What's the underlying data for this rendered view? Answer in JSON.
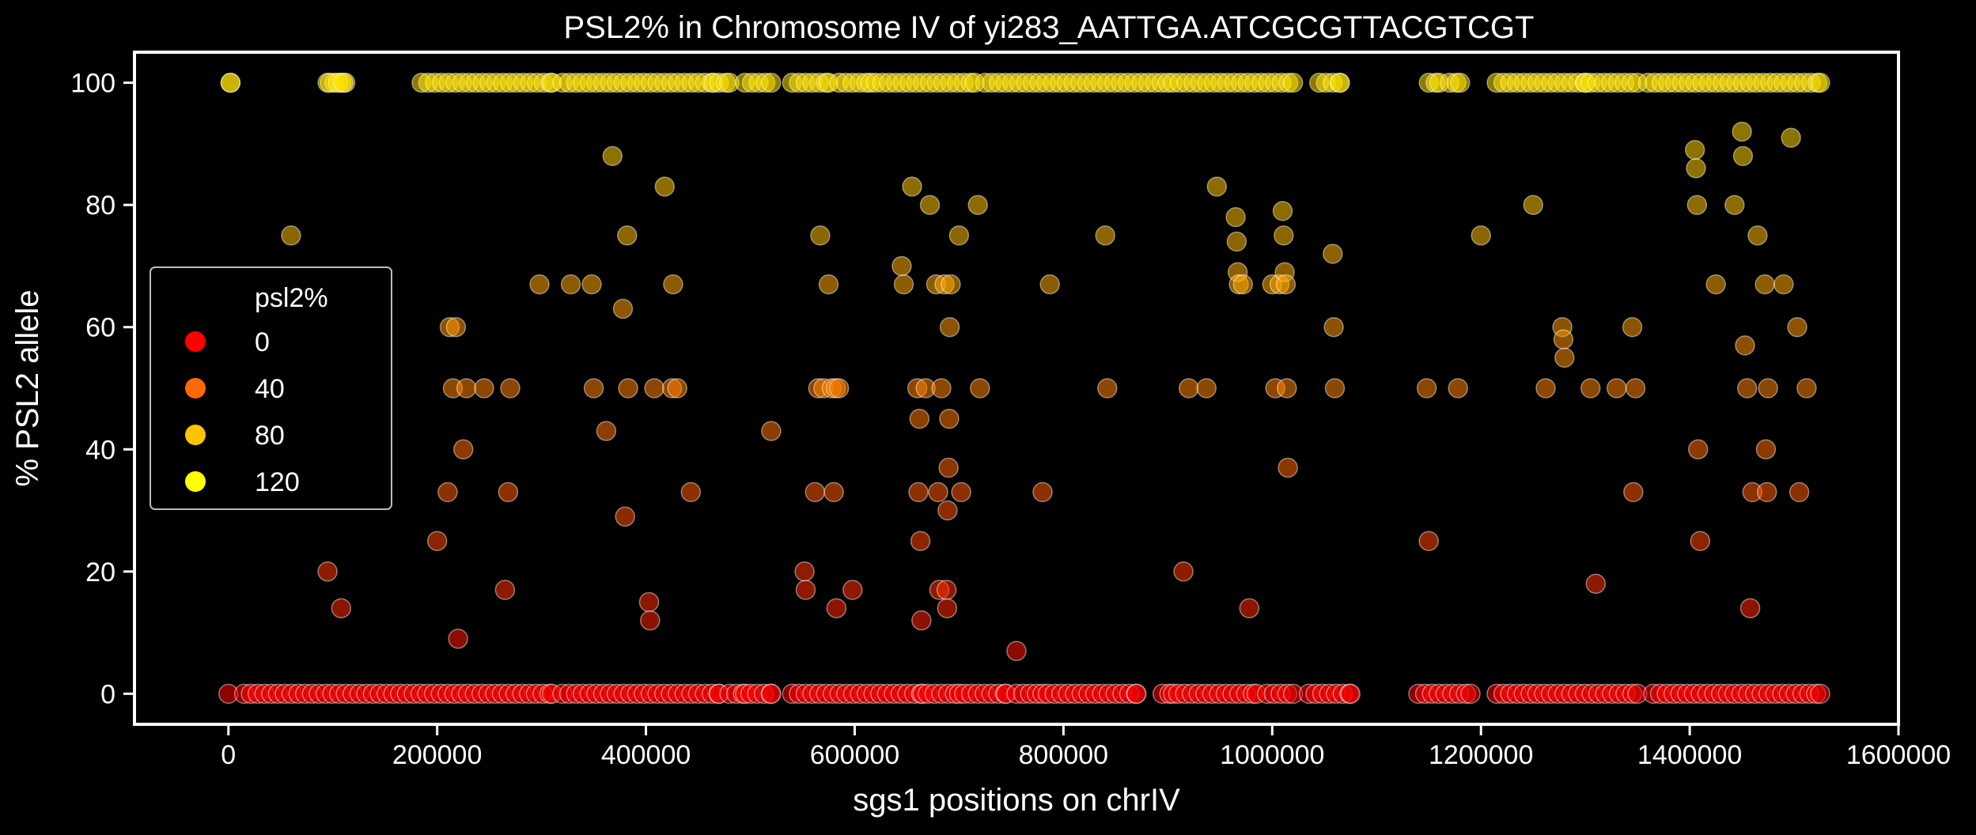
{
  "chart_data": {
    "type": "scatter",
    "title": "PSL2% in Chromosome IV of yi283_AATTGA.ATCGCGTTACGTCGT",
    "xlabel": "sgs1 positions on chrIV",
    "ylabel": "% PSL2 allele",
    "xlim": [
      -90000,
      1600000
    ],
    "ylim": [
      -5,
      105
    ],
    "xticks": [
      0,
      200000,
      400000,
      600000,
      800000,
      1000000,
      1200000,
      1400000,
      1600000
    ],
    "xtick_labels": [
      "0",
      "200000",
      "400000",
      "600000",
      "800000",
      "1000000",
      "1200000",
      "1400000",
      "1600000"
    ],
    "yticks": [
      0,
      20,
      40,
      60,
      80,
      100
    ],
    "ytick_labels": [
      "0",
      "20",
      "40",
      "60",
      "80",
      "100"
    ],
    "grid": false,
    "background": "#000000",
    "hue": "psl2%",
    "legend": {
      "title": "psl2%",
      "placement": "center-left",
      "entries": [
        {
          "label": "0",
          "color": "#ff0000"
        },
        {
          "label": "40",
          "color": "#ff6a00"
        },
        {
          "label": "80",
          "color": "#ffc400"
        },
        {
          "label": "120",
          "color": "#ffff00"
        }
      ]
    },
    "points": [
      [
        2000,
        100
      ],
      [
        60000,
        75
      ],
      [
        95000,
        20
      ],
      [
        97000,
        100
      ],
      [
        105000,
        100
      ],
      [
        108000,
        14
      ],
      [
        110000,
        100
      ],
      [
        200000,
        25
      ],
      [
        210000,
        33
      ],
      [
        212000,
        60
      ],
      [
        215000,
        50
      ],
      [
        218000,
        60
      ],
      [
        220000,
        9
      ],
      [
        225000,
        40
      ],
      [
        228000,
        50
      ],
      [
        245000,
        50
      ],
      [
        265000,
        17
      ],
      [
        268000,
        33
      ],
      [
        270000,
        50
      ],
      [
        298000,
        67
      ],
      [
        328000,
        67
      ],
      [
        348000,
        67
      ],
      [
        350000,
        50
      ],
      [
        362000,
        43
      ],
      [
        368000,
        88
      ],
      [
        378000,
        63
      ],
      [
        380000,
        29
      ],
      [
        382000,
        75
      ],
      [
        383000,
        50
      ],
      [
        403000,
        15
      ],
      [
        404000,
        12
      ],
      [
        408000,
        50
      ],
      [
        418000,
        83
      ],
      [
        425000,
        50
      ],
      [
        426000,
        67
      ],
      [
        430000,
        50
      ],
      [
        443000,
        33
      ],
      [
        520000,
        43
      ],
      [
        552000,
        20
      ],
      [
        553000,
        17
      ],
      [
        562000,
        33
      ],
      [
        565000,
        50
      ],
      [
        567000,
        75
      ],
      [
        570000,
        50
      ],
      [
        575000,
        67
      ],
      [
        578000,
        50
      ],
      [
        580000,
        33
      ],
      [
        582000,
        50
      ],
      [
        585000,
        50
      ],
      [
        582500,
        14
      ],
      [
        598000,
        17
      ],
      [
        645000,
        70
      ],
      [
        647000,
        67
      ],
      [
        655000,
        83
      ],
      [
        660000,
        50
      ],
      [
        661000,
        33
      ],
      [
        662000,
        45
      ],
      [
        663000,
        25
      ],
      [
        664000,
        12
      ],
      [
        668000,
        50
      ],
      [
        672000,
        80
      ],
      [
        678000,
        67
      ],
      [
        680000,
        33
      ],
      [
        681000,
        17
      ],
      [
        683000,
        50
      ],
      [
        686000,
        67
      ],
      [
        688000,
        17
      ],
      [
        688500,
        14
      ],
      [
        689000,
        30
      ],
      [
        690000,
        37
      ],
      [
        690500,
        45
      ],
      [
        691000,
        60
      ],
      [
        692000,
        67
      ],
      [
        700000,
        75
      ],
      [
        702000,
        33
      ],
      [
        718000,
        80
      ],
      [
        720000,
        50
      ],
      [
        755000,
        7
      ],
      [
        780000,
        33
      ],
      [
        787000,
        67
      ],
      [
        840000,
        75
      ],
      [
        842000,
        50
      ],
      [
        915000,
        20
      ],
      [
        920000,
        50
      ],
      [
        937000,
        50
      ],
      [
        947000,
        83
      ],
      [
        965000,
        78
      ],
      [
        966000,
        74
      ],
      [
        967000,
        69
      ],
      [
        968000,
        67
      ],
      [
        972000,
        67
      ],
      [
        978000,
        14
      ],
      [
        1000000,
        67
      ],
      [
        1003000,
        50
      ],
      [
        1007000,
        67
      ],
      [
        1010000,
        79
      ],
      [
        1011000,
        75
      ],
      [
        1012000,
        69
      ],
      [
        1013000,
        67
      ],
      [
        1014000,
        50
      ],
      [
        1015000,
        37
      ],
      [
        1058000,
        72
      ],
      [
        1059000,
        60
      ],
      [
        1060000,
        50
      ],
      [
        1148000,
        50
      ],
      [
        1150000,
        25
      ],
      [
        1178000,
        50
      ],
      [
        1200000,
        75
      ],
      [
        1250000,
        80
      ],
      [
        1262000,
        50
      ],
      [
        1278000,
        60
      ],
      [
        1279000,
        58
      ],
      [
        1280000,
        55
      ],
      [
        1305000,
        50
      ],
      [
        1310000,
        18
      ],
      [
        1330000,
        50
      ],
      [
        1345000,
        60
      ],
      [
        1346000,
        33
      ],
      [
        1348000,
        50
      ],
      [
        1405000,
        89
      ],
      [
        1406000,
        86
      ],
      [
        1407000,
        80
      ],
      [
        1408000,
        40
      ],
      [
        1410000,
        25
      ],
      [
        1425000,
        67
      ],
      [
        1443000,
        80
      ],
      [
        1450000,
        92
      ],
      [
        1451000,
        88
      ],
      [
        1453000,
        57
      ],
      [
        1455000,
        50
      ],
      [
        1458000,
        14
      ],
      [
        1460000,
        33
      ],
      [
        1465000,
        75
      ],
      [
        1472000,
        67
      ],
      [
        1473000,
        40
      ],
      [
        1474000,
        33
      ],
      [
        1475000,
        50
      ],
      [
        1490000,
        67
      ],
      [
        1497000,
        91
      ],
      [
        1503000,
        60
      ],
      [
        1505000,
        33
      ],
      [
        1512000,
        50
      ]
    ],
    "series": [
      {
        "y": 100,
        "clusters": [
          [
            2000,
            2000
          ],
          [
            95000,
            112000
          ],
          [
            185000,
            310000
          ],
          [
            320000,
            465000
          ],
          [
            470000,
            480000
          ],
          [
            495000,
            520000
          ],
          [
            540000,
            575000
          ],
          [
            585000,
            615000
          ],
          [
            620000,
            715000
          ],
          [
            725000,
            900000
          ],
          [
            905000,
            1020000
          ],
          [
            1045000,
            1065000
          ],
          [
            1150000,
            1160000
          ],
          [
            1170000,
            1180000
          ],
          [
            1215000,
            1300000
          ],
          [
            1305000,
            1350000
          ],
          [
            1360000,
            1525000
          ]
        ]
      },
      {
        "y": 0,
        "clusters": [
          [
            0,
            0
          ],
          [
            15000,
            310000
          ],
          [
            320000,
            470000
          ],
          [
            480000,
            495000
          ],
          [
            500000,
            520000
          ],
          [
            540000,
            665000
          ],
          [
            670000,
            700000
          ],
          [
            705000,
            745000
          ],
          [
            755000,
            780000
          ],
          [
            785000,
            870000
          ],
          [
            895000,
            905000
          ],
          [
            910000,
            985000
          ],
          [
            995000,
            1020000
          ],
          [
            1035000,
            1075000
          ],
          [
            1140000,
            1190000
          ],
          [
            1215000,
            1350000
          ],
          [
            1365000,
            1525000
          ]
        ]
      }
    ]
  }
}
